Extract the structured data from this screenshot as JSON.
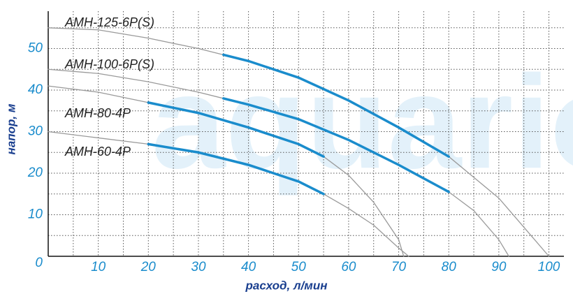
{
  "chart_data": {
    "type": "line",
    "watermark": "aquario",
    "xlabel": "расход, л/мин",
    "ylabel": "напор, м",
    "xlim": [
      0,
      103
    ],
    "ylim": [
      0,
      59
    ],
    "xticks": [
      10,
      20,
      30,
      40,
      50,
      60,
      70,
      80,
      90,
      100
    ],
    "yticks": [
      0,
      10,
      20,
      30,
      40,
      50
    ],
    "xgrid": [
      5,
      10,
      15,
      20,
      25,
      30,
      35,
      40,
      45,
      50,
      55,
      60,
      65,
      70,
      75,
      80,
      85,
      90,
      95,
      100
    ],
    "ygrid": [
      5,
      10,
      15,
      20,
      25,
      30,
      35,
      40,
      45,
      50,
      55
    ],
    "grid": true,
    "series": [
      {
        "name": "АМН-125-6Р(S)",
        "color": "#9a9a9a",
        "x": [
          0,
          10,
          20,
          30,
          35,
          40,
          50,
          60,
          70,
          80,
          90,
          95,
          100
        ],
        "values": [
          55,
          54.5,
          52.5,
          50,
          48.5,
          47,
          43,
          37.5,
          31,
          24,
          14,
          7,
          0
        ],
        "work": {
          "color": "#1a8ccc",
          "values": [
            null,
            null,
            null,
            null,
            48.5,
            47,
            43,
            37.5,
            31,
            24,
            null,
            null,
            null
          ]
        }
      },
      {
        "name": "АМН-100-6Р(S)",
        "color": "#9a9a9a",
        "x": [
          0,
          10,
          20,
          30,
          35,
          40,
          50,
          60,
          70,
          80,
          85,
          90,
          92
        ],
        "values": [
          45,
          44,
          42,
          39.5,
          38,
          36.5,
          33,
          28,
          22,
          15.5,
          11,
          4,
          0
        ],
        "work": {
          "color": "#1a8ccc",
          "values": [
            null,
            null,
            null,
            null,
            38,
            36.5,
            33,
            28,
            22,
            15.5,
            null,
            null,
            null
          ]
        }
      },
      {
        "name": "АМН-80-4Р",
        "color": "#9a9a9a",
        "x": [
          0,
          10,
          20,
          30,
          40,
          50,
          55,
          60,
          65,
          70,
          71
        ],
        "values": [
          41,
          39.5,
          37,
          34.5,
          31,
          27,
          24,
          19.5,
          13,
          4,
          0
        ],
        "work": {
          "color": "#1a8ccc",
          "values": [
            null,
            null,
            37,
            34.5,
            31,
            27,
            24,
            null,
            null,
            null,
            null
          ]
        }
      },
      {
        "name": "АМН-60-4Р",
        "color": "#9a9a9a",
        "x": [
          0,
          10,
          20,
          30,
          40,
          50,
          55,
          60,
          65,
          70,
          72
        ],
        "values": [
          30,
          28.5,
          27,
          25,
          22,
          18,
          15,
          11.5,
          7.5,
          2,
          0
        ],
        "work": {
          "color": "#1a8ccc",
          "values": [
            null,
            null,
            27,
            25,
            22,
            18,
            15,
            null,
            null,
            null,
            null
          ]
        }
      }
    ]
  }
}
